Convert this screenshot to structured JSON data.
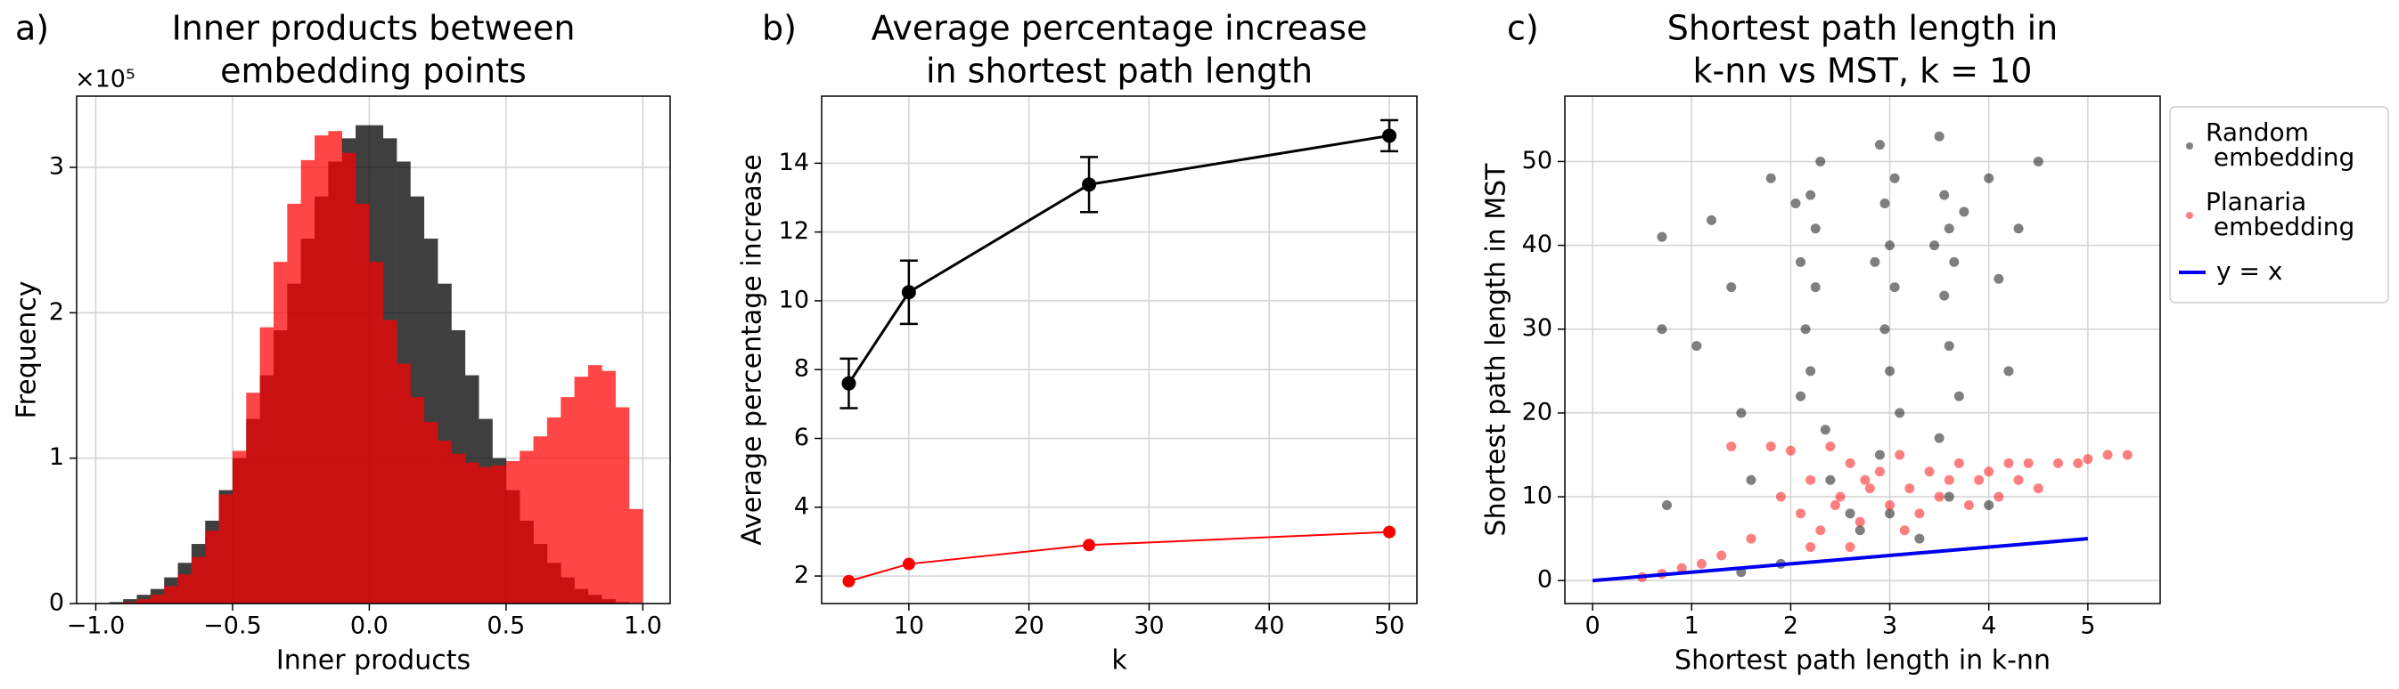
{
  "chart_data": [
    {
      "type": "histogram",
      "label": "a)",
      "title": [
        "Inner products between",
        "embedding points"
      ],
      "xlabel": "Inner products",
      "ylabel": "Frequency",
      "y_offset_label": "×10⁵",
      "bins": [
        -1.0,
        -0.95,
        -0.9,
        -0.85,
        -0.8,
        -0.75,
        -0.7,
        -0.65,
        -0.6,
        -0.55,
        -0.5,
        -0.45,
        -0.4,
        -0.35,
        -0.3,
        -0.25,
        -0.2,
        -0.15,
        -0.1,
        -0.05,
        0.0,
        0.05,
        0.1,
        0.15,
        0.2,
        0.25,
        0.3,
        0.35,
        0.4,
        0.45,
        0.5,
        0.55,
        0.6,
        0.65,
        0.7,
        0.75,
        0.8,
        0.85,
        0.9,
        0.95,
        1.0
      ],
      "series": [
        {
          "color": "#000000",
          "alpha": 0.75,
          "values": [
            0.0,
            0.01,
            0.03,
            0.06,
            0.1,
            0.18,
            0.28,
            0.41,
            0.57,
            0.78,
            1.0,
            1.27,
            1.57,
            1.88,
            2.2,
            2.51,
            2.8,
            3.04,
            3.2,
            3.29,
            3.29,
            3.2,
            3.04,
            2.8,
            2.51,
            2.2,
            1.88,
            1.57,
            1.27,
            1.0,
            0.78,
            0.57,
            0.41,
            0.28,
            0.18,
            0.1,
            0.06,
            0.03,
            0.01,
            0.0
          ]
        },
        {
          "color": "#ff0000",
          "alpha": 0.72,
          "values": [
            0.0,
            0.0,
            0.01,
            0.03,
            0.06,
            0.12,
            0.2,
            0.32,
            0.5,
            0.75,
            1.05,
            1.45,
            1.9,
            2.35,
            2.75,
            3.05,
            3.22,
            3.25,
            3.1,
            2.75,
            2.35,
            1.95,
            1.65,
            1.42,
            1.25,
            1.12,
            1.03,
            0.97,
            0.94,
            0.95,
            0.98,
            1.05,
            1.15,
            1.28,
            1.42,
            1.56,
            1.64,
            1.6,
            1.35,
            0.65
          ]
        }
      ],
      "xlim": [
        -1.07,
        1.1
      ],
      "ylim": [
        0,
        3.49
      ],
      "xticks": [
        {
          "value": -1.0,
          "label": "−1.0"
        },
        {
          "value": -0.5,
          "label": "−0.5"
        },
        {
          "value": 0.0,
          "label": "0.0"
        },
        0.5,
        {
          "value": 1.0,
          "label": "1.0"
        }
      ],
      "yticks": [
        0,
        1,
        2,
        3
      ],
      "grid": true
    },
    {
      "type": "line",
      "label": "b)",
      "title": [
        "Average percentage increase",
        "in shortest path length"
      ],
      "xlabel": "k",
      "ylabel": "Average percentage increase",
      "x": [
        5,
        10,
        25,
        50
      ],
      "series": [
        {
          "color": "#000000",
          "values": [
            7.6,
            10.25,
            13.38,
            14.8
          ],
          "errors": [
            0.72,
            0.92,
            0.8,
            0.45
          ]
        },
        {
          "color": "#ff0000",
          "values": [
            1.85,
            2.35,
            2.9,
            3.28
          ]
        }
      ],
      "xlim": [
        2.74,
        52.3
      ],
      "ylim": [
        1.2,
        15.95
      ],
      "xticks": [
        10,
        20,
        30,
        40,
        50
      ],
      "yticks": [
        2,
        4,
        6,
        8,
        10,
        12,
        14
      ],
      "grid": true
    },
    {
      "type": "scatter",
      "label": "c)",
      "title": [
        "Shortest path length in",
        "k-nn vs MST, k = 10"
      ],
      "xlabel": "Shortest path length in k-nn",
      "ylabel": "Shortest path length in MST",
      "series": [
        {
          "name": "Random embedding",
          "color": "#000000",
          "alpha": 0.5,
          "x": [
            0.7,
            0.7,
            0.75,
            1.05,
            1.2,
            1.4,
            1.5,
            1.6,
            1.8,
            2.05,
            2.1,
            2.15,
            2.2,
            2.25,
            2.3,
            2.25,
            2.35,
            2.4,
            2.2,
            2.1,
            2.9,
            2.95,
            3.0,
            3.05,
            2.95,
            3.0,
            3.1,
            2.9,
            3.0,
            3.05,
            2.85,
            3.5,
            3.55,
            3.6,
            3.65,
            3.55,
            3.6,
            3.7,
            3.5,
            3.6,
            3.75,
            3.45,
            4.0,
            4.1,
            4.2,
            4.3,
            4.5,
            2.6,
            2.7,
            3.3,
            4.0,
            1.9,
            1.5
          ],
          "y": [
            41,
            30,
            9,
            28,
            43,
            35,
            20,
            12,
            48,
            45,
            38,
            30,
            25,
            42,
            50,
            35,
            18,
            12,
            46,
            22,
            52,
            45,
            40,
            35,
            30,
            25,
            20,
            15,
            8,
            48,
            38,
            53,
            46,
            42,
            38,
            34,
            28,
            22,
            17,
            10,
            44,
            40,
            48,
            36,
            25,
            42,
            50,
            8,
            6,
            5,
            9,
            2,
            1
          ]
        },
        {
          "name": "Planaria embedding",
          "color": "#ff0000",
          "alpha": 0.5,
          "x": [
            0.5,
            0.7,
            0.9,
            1.1,
            1.3,
            1.4,
            1.6,
            1.8,
            1.9,
            2.0,
            2.1,
            2.2,
            2.3,
            2.4,
            2.5,
            2.6,
            2.7,
            2.8,
            2.9,
            3.0,
            3.1,
            3.2,
            3.3,
            3.4,
            3.5,
            3.6,
            3.7,
            3.8,
            3.9,
            4.0,
            4.1,
            4.2,
            4.3,
            4.4,
            4.5,
            4.7,
            4.9,
            5.0,
            5.2,
            5.4,
            2.2,
            2.6,
            2.45,
            2.75,
            3.15
          ],
          "y": [
            0.4,
            0.8,
            1.5,
            2,
            3,
            16,
            5,
            16,
            10,
            15.5,
            8,
            12,
            6,
            16,
            10,
            14,
            7,
            11,
            13,
            9,
            15,
            11,
            8,
            13,
            10,
            12,
            14,
            9,
            12,
            13,
            10,
            14,
            12,
            14,
            11,
            14,
            14,
            14.5,
            15,
            15,
            4,
            4,
            9,
            12,
            6
          ]
        },
        {
          "name": "y = x",
          "type": "line",
          "color": "#0000ee",
          "x": [
            0,
            5
          ],
          "y": [
            0,
            5
          ]
        }
      ],
      "xlim": [
        -0.28,
        5.73
      ],
      "ylim": [
        -2.74,
        57.8
      ],
      "xticks": [
        0,
        1,
        2,
        3,
        4,
        5
      ],
      "yticks": [
        0,
        10,
        20,
        30,
        40,
        50
      ],
      "grid": true
    }
  ]
}
